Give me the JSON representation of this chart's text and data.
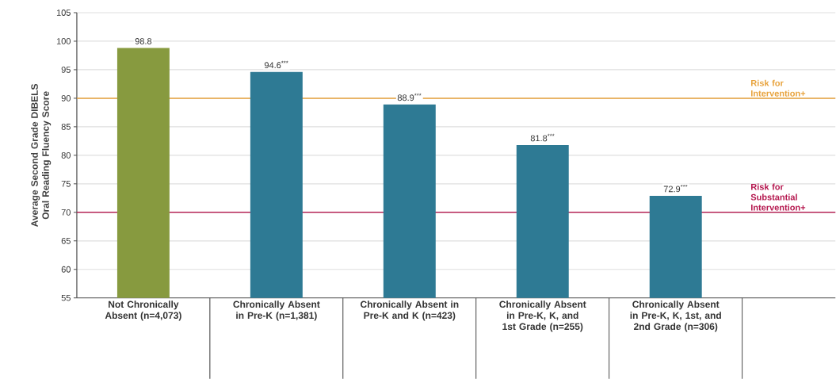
{
  "chart_data": {
    "type": "bar",
    "ylabel": "Average Second Grade DIBELS Oral Reading Fluency Score",
    "categories": [
      "Not Chronically Absent (n=4,073)",
      "Chronically Absent in Pre-K (n=1,381)",
      "Chronically Absent in Pre-K and K (n=423)",
      "Chronically Absent in Pre-K, K, and 1st Grade (n=255)",
      "Chronically Absent in Pre-K, K, 1st, and 2nd Grade (n=306)"
    ],
    "values": [
      98.8,
      94.6,
      88.9,
      81.8,
      72.9
    ],
    "colors": [
      "#879a3f",
      "#2e7a94",
      "#2e7a94",
      "#2e7a94",
      "#2e7a94"
    ],
    "value_labels": [
      "98.8",
      "94.6$^{***}$",
      "88.9$^{***}$",
      "81.8$^{***}$",
      "72.9$^{***}$"
    ],
    "ylim": [
      55,
      105
    ],
    "yticks": [
      55,
      60,
      65,
      70,
      75,
      80,
      85,
      90,
      95,
      100,
      105
    ],
    "grid": "y",
    "ref_lines": [
      {
        "axis": "y",
        "value": 90,
        "label": "Risk for Intervention+",
        "color": "#e8a33d"
      },
      {
        "axis": "y",
        "value": 70,
        "label": "Risk for Substantial Intervention+",
        "color": "#b5184f"
      }
    ]
  }
}
